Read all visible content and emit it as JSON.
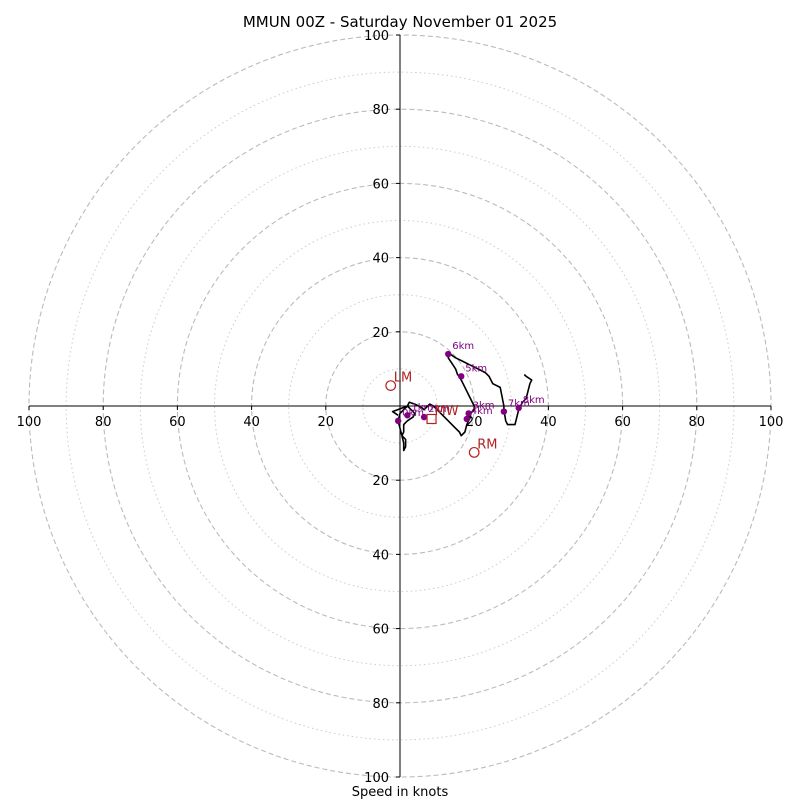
{
  "chart_data": {
    "type": "hodograph",
    "title": "MMUN 00Z - Saturday November 01 2025",
    "xlabel": "Speed in knots",
    "max_speed": 100,
    "ring_major": [
      20,
      40,
      60,
      80,
      100
    ],
    "ring_minor": [
      10,
      30,
      50,
      70,
      90
    ],
    "tick_values": [
      20,
      40,
      60,
      80,
      100
    ],
    "tick_labels": [
      "20",
      "40",
      "60",
      "80",
      "100"
    ],
    "colors": {
      "trace": "#000000",
      "height_point": "#800080",
      "motion": "#b22222",
      "ring": "#bbbbbb",
      "axis": "#000000"
    },
    "trace": [
      [
        -0.5,
        -2.5
      ],
      [
        -2,
        -1.5
      ],
      [
        2,
        0
      ],
      [
        3,
        -1
      ],
      [
        4,
        -2
      ],
      [
        3.5,
        -3
      ],
      [
        2,
        -4
      ],
      [
        1,
        -5
      ],
      [
        1,
        -7
      ],
      [
        0.5,
        -8
      ],
      [
        1.5,
        -9
      ],
      [
        1.5,
        -11
      ],
      [
        1,
        -12
      ],
      [
        1,
        -10
      ],
      [
        0.5,
        -8
      ],
      [
        0,
        -6
      ],
      [
        -0.5,
        -4
      ],
      [
        0,
        -2
      ],
      [
        1,
        -1
      ],
      [
        2,
        0
      ],
      [
        2.5,
        1
      ],
      [
        4,
        0.5
      ],
      [
        5,
        0
      ],
      [
        6,
        -0.5
      ],
      [
        6.5,
        -1
      ],
      [
        8,
        0.5
      ],
      [
        9,
        0
      ],
      [
        10,
        -1
      ],
      [
        11,
        -2
      ],
      [
        12,
        -3
      ],
      [
        13,
        -4
      ],
      [
        14,
        -5
      ],
      [
        15,
        -6
      ],
      [
        16,
        -7
      ],
      [
        16.5,
        -8
      ],
      [
        17.5,
        -7
      ],
      [
        18,
        -5
      ],
      [
        18.5,
        -4
      ],
      [
        19,
        -3
      ],
      [
        19,
        -2
      ],
      [
        20,
        -1
      ],
      [
        20,
        0
      ],
      [
        19.5,
        1
      ],
      [
        19,
        2
      ],
      [
        18.5,
        3
      ],
      [
        18,
        4
      ],
      [
        17.5,
        5
      ],
      [
        17,
        6
      ],
      [
        16.5,
        7
      ],
      [
        16,
        8
      ],
      [
        15.5,
        8.5
      ],
      [
        15,
        10
      ],
      [
        14,
        11.5
      ],
      [
        13,
        13
      ],
      [
        13.5,
        14
      ],
      [
        15,
        13
      ],
      [
        17,
        12
      ],
      [
        19,
        11
      ],
      [
        21,
        10
      ],
      [
        23,
        9
      ],
      [
        24,
        8
      ],
      [
        25,
        6
      ],
      [
        27,
        5
      ],
      [
        28,
        0
      ],
      [
        28,
        -1
      ],
      [
        28.5,
        -4
      ],
      [
        29,
        -5
      ],
      [
        31,
        -5
      ],
      [
        32,
        -1
      ],
      [
        32.5,
        0
      ],
      [
        33,
        1
      ],
      [
        34,
        2
      ],
      [
        34.5,
        4
      ],
      [
        35,
        6
      ],
      [
        35.5,
        7
      ],
      [
        34,
        8
      ],
      [
        33.5,
        8.5
      ]
    ],
    "height_points": [
      {
        "label": "0km",
        "u": -0.5,
        "v": -4
      },
      {
        "label": "1km",
        "u": 2,
        "v": -2.5
      },
      {
        "label": "2km",
        "u": 6.5,
        "v": -3
      },
      {
        "label": "3km",
        "u": 18.5,
        "v": -2
      },
      {
        "label": "4km",
        "u": 18,
        "v": -3.5
      },
      {
        "label": "5km",
        "u": 16.5,
        "v": 8
      },
      {
        "label": "6km",
        "u": 13,
        "v": 14
      },
      {
        "label": "7km",
        "u": 28,
        "v": -1.5
      },
      {
        "label": "8km",
        "u": 32,
        "v": -0.5
      }
    ],
    "motion_points": [
      {
        "label": "LM",
        "u": -2.5,
        "v": 5.5,
        "marker": "circle"
      },
      {
        "label": "RM",
        "u": 20,
        "v": -12.5,
        "marker": "circle"
      },
      {
        "label": "MW",
        "u": 8.5,
        "v": -3.5,
        "marker": "square"
      }
    ]
  }
}
